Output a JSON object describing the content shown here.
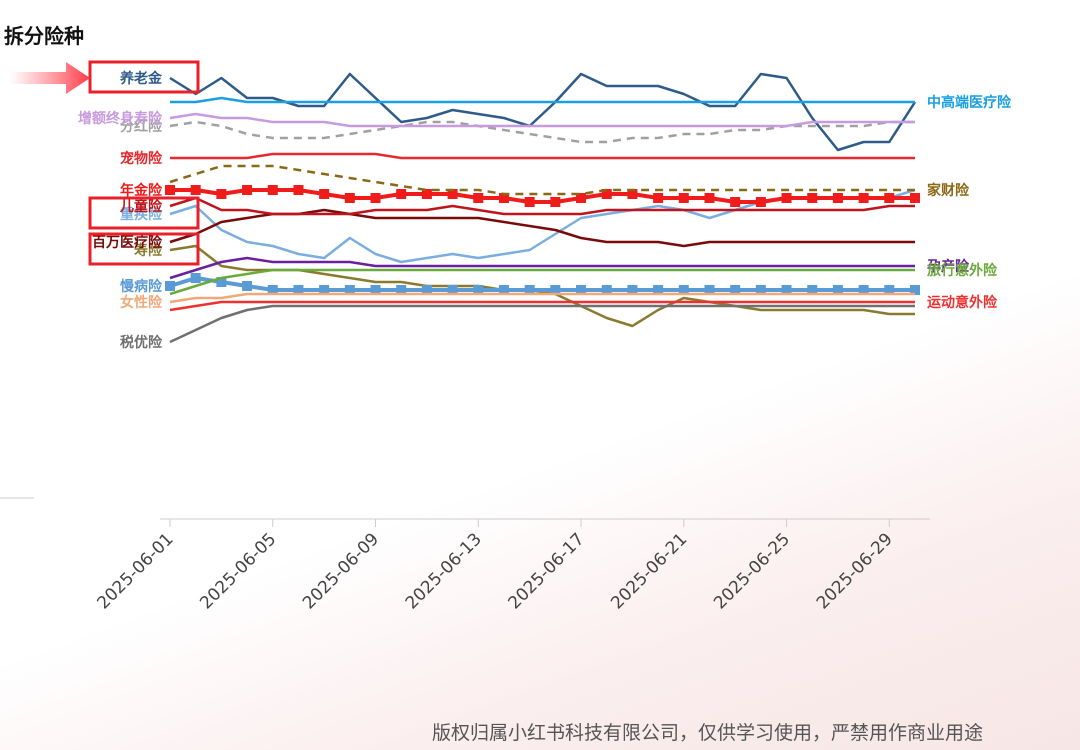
{
  "title": "拆分险种",
  "footer": "版权归属小红书科技有限公司，仅供学习使用，严禁用作商业用途",
  "chart_data": {
    "type": "line",
    "title": "拆分险种",
    "x_tick_labels": [
      "2025-06-01",
      "2025-06-05",
      "2025-06-09",
      "2025-06-13",
      "2025-06-17",
      "2025-06-21",
      "2025-06-25",
      "2025-06-29"
    ],
    "x_start": "2025-06-01",
    "x_end": "2025-06-30",
    "grid": false,
    "legend": "direct labels",
    "highlighted": [
      "养老金",
      "重疾险",
      "寿险"
    ],
    "series": [
      {
        "name": "养老金",
        "color": "#2e5b8a",
        "label_side": "left",
        "values": [
          88,
          84,
          88,
          83,
          83,
          81,
          81,
          89,
          83,
          77,
          78,
          80,
          79,
          78,
          76,
          82,
          89,
          86,
          86,
          86,
          84,
          81,
          81,
          89,
          88,
          78,
          70,
          72,
          72,
          82
        ]
      },
      {
        "name": "重疾险",
        "color": "#7aaee0",
        "label_side": "left",
        "values": [
          54,
          56,
          50,
          47,
          46,
          44,
          43,
          48,
          44,
          42,
          43,
          44,
          43,
          44,
          45,
          49,
          53,
          54,
          55,
          56,
          55,
          53,
          55,
          57,
          58,
          58,
          58,
          58,
          58,
          60
        ]
      },
      {
        "name": "寿险",
        "color": "#8b7a2e",
        "label_side": "left",
        "values": [
          45,
          46,
          41,
          40,
          40,
          40,
          39,
          38,
          37,
          37,
          36,
          36,
          36,
          35,
          35,
          34,
          31,
          28,
          26,
          30,
          33,
          32,
          31,
          30,
          30,
          30,
          30,
          30,
          29,
          29
        ]
      },
      {
        "name": "百万医疗险",
        "color": "#7a0a0a",
        "label_side": "left",
        "values": [
          47,
          49,
          52,
          53,
          54,
          54,
          55,
          54,
          53,
          53,
          53,
          53,
          53,
          52,
          51,
          50,
          48,
          47,
          47,
          47,
          46,
          47,
          47,
          47,
          47,
          47,
          47,
          47,
          47,
          47
        ]
      },
      {
        "name": "儿童险",
        "color": "#c0141c",
        "label_side": "left",
        "values": [
          56,
          58,
          55,
          55,
          54,
          54,
          54,
          54,
          55,
          55,
          55,
          56,
          55,
          54,
          54,
          54,
          54,
          55,
          55,
          55,
          55,
          55,
          55,
          55,
          55,
          55,
          55,
          55,
          56,
          56
        ]
      },
      {
        "name": "年金险",
        "color": "#f01c1c",
        "label_side": "left",
        "marker": "square",
        "values": [
          60,
          60,
          59,
          60,
          60,
          60,
          59,
          58,
          58,
          59,
          59,
          59,
          58,
          58,
          57,
          57,
          58,
          59,
          59,
          58,
          58,
          58,
          57,
          57,
          58,
          58,
          58,
          58,
          58,
          58
        ]
      },
      {
        "name": "宠物险",
        "color": "#e8282c",
        "label_side": "left",
        "values": [
          68,
          68,
          68,
          68,
          69,
          69,
          69,
          69,
          69,
          68,
          68,
          68,
          68,
          68,
          68,
          68,
          68,
          68,
          68,
          68,
          68,
          68,
          68,
          68,
          68,
          68,
          68,
          68,
          68,
          68
        ]
      },
      {
        "name": "家财险",
        "color": "#8b6914",
        "label_side": "right",
        "dash": true,
        "values": [
          62,
          64,
          66,
          66,
          66,
          65,
          64,
          63,
          62,
          61,
          60,
          60,
          60,
          59,
          59,
          59,
          59,
          60,
          60,
          60,
          60,
          60,
          60,
          60,
          60,
          60,
          60,
          60,
          60,
          60
        ]
      },
      {
        "name": "分红险",
        "color": "#a0a0a0",
        "label_side": "left",
        "dash": true,
        "values": [
          76,
          77,
          76,
          74,
          73,
          73,
          73,
          74,
          75,
          76,
          77,
          77,
          76,
          75,
          74,
          73,
          72,
          72,
          73,
          73,
          74,
          74,
          75,
          75,
          76,
          76,
          76,
          76,
          77,
          77
        ]
      },
      {
        "name": "增额终身寿险",
        "color": "#c89ae0",
        "label_side": "left",
        "values": [
          78,
          79,
          78,
          78,
          77,
          77,
          77,
          76,
          76,
          76,
          76,
          76,
          76,
          76,
          76,
          76,
          76,
          76,
          76,
          76,
          76,
          76,
          76,
          76,
          76,
          77,
          77,
          77,
          77,
          77
        ]
      },
      {
        "name": "中高端医疗险",
        "color": "#1aa0e0",
        "label_side": "right",
        "values": [
          82,
          82,
          83,
          82,
          82,
          82,
          82,
          82,
          82,
          82,
          82,
          82,
          82,
          82,
          82,
          82,
          82,
          82,
          82,
          82,
          82,
          82,
          82,
          82,
          82,
          82,
          82,
          82,
          82,
          82
        ]
      },
      {
        "name": "孕产险",
        "color": "#6a1fa0",
        "label_side": "right",
        "values": [
          38,
          40,
          42,
          43,
          42,
          42,
          42,
          42,
          41,
          41,
          41,
          41,
          41,
          41,
          41,
          41,
          41,
          41,
          41,
          41,
          41,
          41,
          41,
          41,
          41,
          41,
          41,
          41,
          41,
          41
        ]
      },
      {
        "name": "慢病险",
        "color": "#5b9bd5",
        "label_side": "left",
        "marker": "square",
        "values": [
          36,
          38,
          37,
          36,
          35,
          35,
          35,
          35,
          35,
          35,
          35,
          35,
          35,
          35,
          35,
          35,
          35,
          35,
          35,
          35,
          35,
          35,
          35,
          35,
          35,
          35,
          35,
          35,
          35,
          35
        ]
      },
      {
        "name": "旅行意外险",
        "color": "#6aaa3a",
        "label_side": "right",
        "values": [
          34,
          36,
          38,
          39,
          40,
          40,
          40,
          40,
          40,
          40,
          40,
          40,
          40,
          40,
          40,
          40,
          40,
          40,
          40,
          40,
          40,
          40,
          40,
          40,
          40,
          40,
          40,
          40,
          40,
          40
        ]
      },
      {
        "name": "女性险",
        "color": "#f0a878",
        "label_side": "left",
        "values": [
          32,
          33,
          33,
          34,
          34,
          34,
          34,
          34,
          34,
          34,
          34,
          34,
          34,
          34,
          34,
          34,
          34,
          34,
          34,
          34,
          34,
          34,
          34,
          34,
          34,
          34,
          34,
          34,
          34,
          34
        ]
      },
      {
        "name": "运动意外险",
        "color": "#f03030",
        "label_side": "right",
        "values": [
          30,
          31,
          32,
          32,
          32,
          32,
          32,
          32,
          32,
          32,
          32,
          32,
          32,
          32,
          32,
          32,
          32,
          32,
          32,
          32,
          32,
          32,
          32,
          32,
          32,
          32,
          32,
          32,
          32,
          32
        ]
      },
      {
        "name": "税优险",
        "color": "#707070",
        "label_side": "left",
        "values": [
          22,
          25,
          28,
          30,
          31,
          31,
          31,
          31,
          31,
          31,
          31,
          31,
          31,
          31,
          31,
          31,
          31,
          31,
          31,
          31,
          31,
          31,
          31,
          31,
          31,
          31,
          31,
          31,
          31,
          31
        ]
      }
    ]
  }
}
